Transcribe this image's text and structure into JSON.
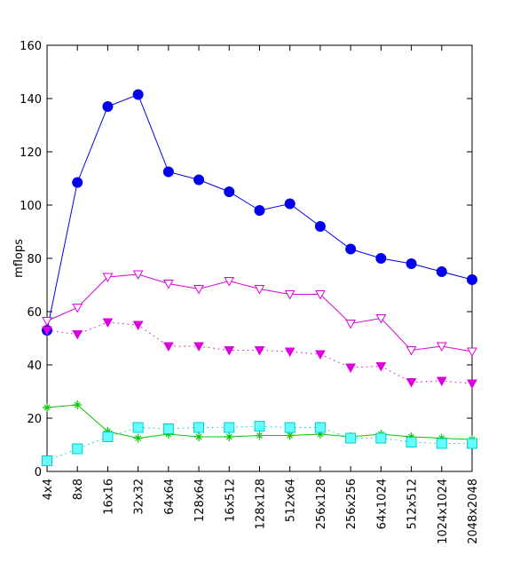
{
  "chart_data": {
    "type": "line",
    "title": "",
    "xlabel": "",
    "ylabel": "mflops",
    "ylim": [
      0,
      160
    ],
    "yticks": [
      0,
      20,
      40,
      60,
      80,
      100,
      120,
      140,
      160
    ],
    "grid": false,
    "categories": [
      "4x4",
      "8x8",
      "16x16",
      "32x32",
      "64x64",
      "128x64",
      "16x512",
      "128x128",
      "512x64",
      "256x128",
      "256x256",
      "64x1024",
      "512x512",
      "1024x1024",
      "2048x2048"
    ],
    "series": [
      {
        "values": [
          53,
          108.5,
          137,
          141.5,
          112.5,
          109.5,
          105,
          98,
          100.5,
          92,
          83.5,
          80,
          78,
          75,
          72
        ],
        "color": "#0000ee",
        "marker": "filled-circle",
        "line": "solid"
      },
      {
        "values": [
          56.5,
          61.5,
          73,
          74,
          70.5,
          68.5,
          71.5,
          68.5,
          66.5,
          66.5,
          55.5,
          57.5,
          45.5,
          47,
          45
        ],
        "color": "#dd00dd",
        "marker": "open-triangle-down",
        "line": "solid"
      },
      {
        "values": [
          53,
          51.5,
          56,
          55,
          47,
          47,
          45.5,
          45.5,
          45,
          44,
          39,
          39.5,
          33.5,
          34,
          33
        ],
        "color": "#dd00dd",
        "marker": "filled-triangle-down",
        "line": "dotted"
      },
      {
        "values": [
          24,
          25,
          15,
          12.5,
          14,
          13,
          13,
          13.5,
          13.5,
          14,
          13,
          14,
          13,
          12.5,
          12
        ],
        "color": "#00cc00",
        "marker": "plus-star",
        "line": "solid"
      },
      {
        "values": [
          4,
          8.5,
          13,
          16.5,
          16,
          16.5,
          16.5,
          17,
          16.5,
          16.5,
          12.5,
          12.5,
          11,
          10.5,
          10.5
        ],
        "color": "#00cccc",
        "fill": "#66ffff",
        "marker": "open-square",
        "line": "dotted"
      }
    ]
  }
}
